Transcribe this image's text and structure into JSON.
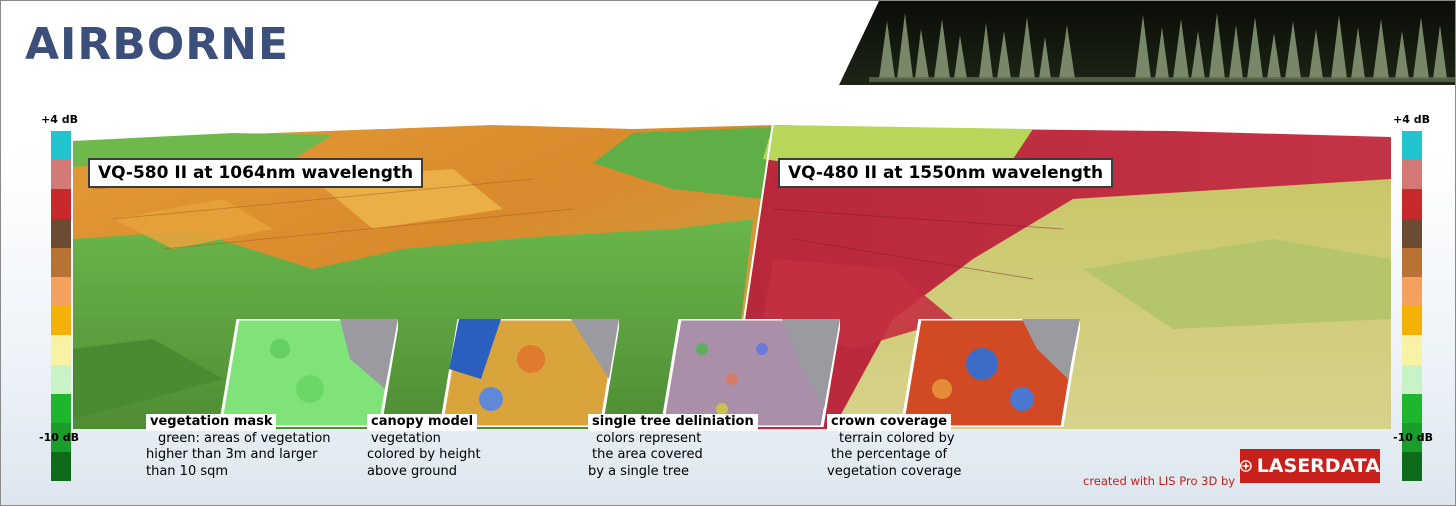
{
  "title": "AIRBORNE",
  "scale": {
    "top_label": "+4 dB",
    "bottom_label": "-10 dB",
    "colors": [
      "#21c3cf",
      "#d37a76",
      "#c8292a",
      "#6b4c33",
      "#b87233",
      "#f2a15e",
      "#f2b208",
      "#f7f2a4",
      "#c9f3c6",
      "#1db62d",
      "#1a9d2a",
      "#0d6b1a"
    ]
  },
  "panels": {
    "left_caption": "VQ-580 II at 1064nm wavelength",
    "right_caption": "VQ-480 II at 1550nm wavelength"
  },
  "insets": [
    {
      "title": "vegetation mask",
      "lines": [
        "green: areas of vegetation",
        "higher than 3m and larger",
        "than 10 sqm"
      ]
    },
    {
      "title": "canopy model",
      "lines": [
        "vegetation",
        "colored by height",
        "above ground"
      ]
    },
    {
      "title": "single tree deliniation",
      "lines": [
        "colors represent",
        "the area covered",
        "by a single tree"
      ]
    },
    {
      "title": "crown coverage",
      "lines": [
        "terrain colored by",
        "the percentage of",
        "vegetation coverage"
      ]
    }
  ],
  "credit": "created with LIS Pro 3D by",
  "logo_text": "LASERDATA"
}
